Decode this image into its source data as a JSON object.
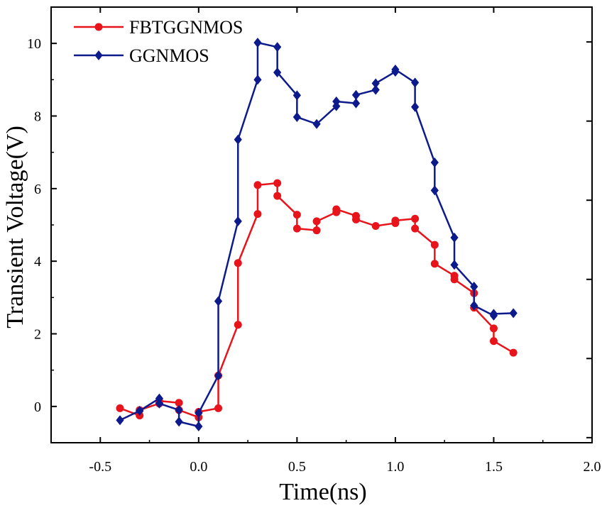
{
  "chart_data": {
    "type": "line",
    "xlabel": "Time(ns)",
    "ylabel": "Transient Voltage(V)",
    "xlim": [
      -0.75,
      2.0
    ],
    "ylim": [
      -1.0,
      11.0
    ],
    "xticks": [
      -0.5,
      0.0,
      0.5,
      1.0,
      1.5,
      2.0
    ],
    "xtick_labels": [
      "-0.5",
      "0.0",
      "0.5",
      "1.0",
      "1.5",
      "2.0"
    ],
    "yticks": [
      0,
      2,
      4,
      6,
      8,
      10
    ],
    "ytick_labels": [
      "0",
      "2",
      "4",
      "6",
      "8",
      "10"
    ],
    "grid": false,
    "legend_position": "top-left",
    "series": [
      {
        "name": "FBTGGNMOS",
        "color": "#e8141b",
        "marker": "circle",
        "x": [
          -0.4,
          -0.3,
          -0.3,
          -0.2,
          -0.2,
          -0.1,
          -0.1,
          0.0,
          0.0,
          0.1,
          0.1,
          0.2,
          0.2,
          0.3,
          0.3,
          0.4,
          0.4,
          0.5,
          0.5,
          0.6,
          0.6,
          0.7,
          0.7,
          0.8,
          0.8,
          0.9,
          1.0,
          1.0,
          1.1,
          1.1,
          1.2,
          1.2,
          1.3,
          1.3,
          1.4,
          1.4,
          1.5,
          1.5,
          1.6
        ],
        "y": [
          -0.05,
          -0.25,
          -0.1,
          0.08,
          0.15,
          0.1,
          -0.1,
          -0.3,
          -0.15,
          -0.05,
          0.85,
          2.25,
          3.95,
          5.3,
          6.1,
          6.15,
          5.8,
          5.28,
          4.9,
          4.85,
          5.1,
          5.35,
          5.43,
          5.25,
          5.15,
          4.97,
          5.05,
          5.12,
          5.17,
          4.9,
          4.45,
          3.93,
          3.6,
          3.5,
          3.12,
          2.72,
          2.15,
          1.8,
          1.48
        ]
      },
      {
        "name": "GGNMOS",
        "color": "#0d1a8c",
        "marker": "diamond",
        "x": [
          -0.4,
          -0.3,
          -0.2,
          -0.2,
          -0.1,
          -0.1,
          0.0,
          0.0,
          0.1,
          0.1,
          0.2,
          0.2,
          0.3,
          0.3,
          0.4,
          0.4,
          0.5,
          0.5,
          0.6,
          0.7,
          0.7,
          0.8,
          0.8,
          0.9,
          0.9,
          1.0,
          1.0,
          1.1,
          1.1,
          1.2,
          1.2,
          1.3,
          1.3,
          1.4,
          1.4,
          1.5,
          1.5,
          1.6
        ],
        "y": [
          -0.38,
          -0.12,
          0.22,
          0.08,
          -0.1,
          -0.42,
          -0.55,
          -0.18,
          0.85,
          2.9,
          5.1,
          7.35,
          9.0,
          10.02,
          9.9,
          9.2,
          8.57,
          7.97,
          7.78,
          8.27,
          8.4,
          8.35,
          8.58,
          8.72,
          8.9,
          9.22,
          9.28,
          8.92,
          8.25,
          6.72,
          5.95,
          4.65,
          3.9,
          3.3,
          2.78,
          2.5,
          2.55,
          2.57
        ]
      }
    ]
  }
}
